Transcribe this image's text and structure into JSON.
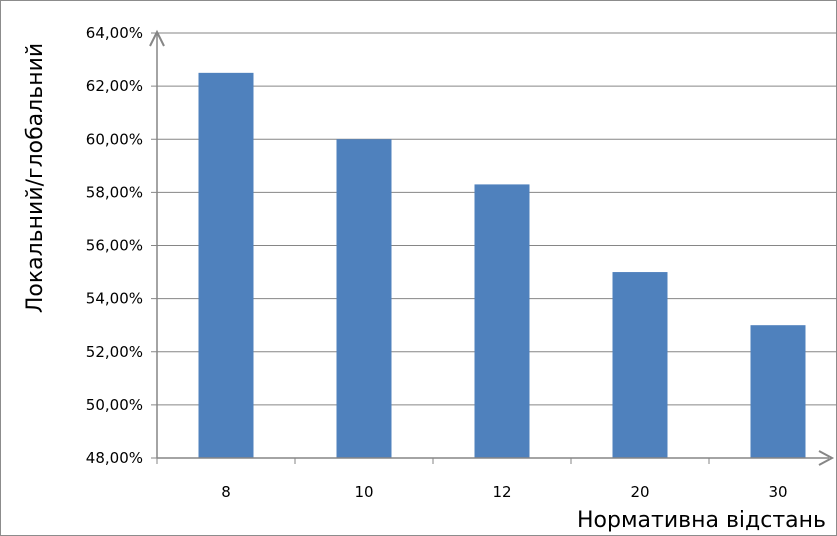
{
  "chart_data": {
    "type": "bar",
    "categories": [
      "8",
      "10",
      "12",
      "20",
      "30"
    ],
    "values": [
      62.5,
      60.0,
      58.3,
      55.0,
      53.0
    ],
    "xlabel": "Нормативна відстань",
    "ylabel": "Локальний/глобальний",
    "ylim": [
      48,
      64
    ],
    "ytick_values": [
      48,
      50,
      52,
      54,
      56,
      58,
      60,
      62,
      64
    ],
    "ytick_labels": [
      "48,00%",
      "50,00%",
      "52,00%",
      "54,00%",
      "56,00%",
      "58,00%",
      "60,00%",
      "62,00%",
      "64,00%"
    ],
    "grid": true,
    "legend": "none",
    "colors": {
      "bar": "#4f81bd",
      "grid": "#868686",
      "axis": "#868686"
    }
  }
}
